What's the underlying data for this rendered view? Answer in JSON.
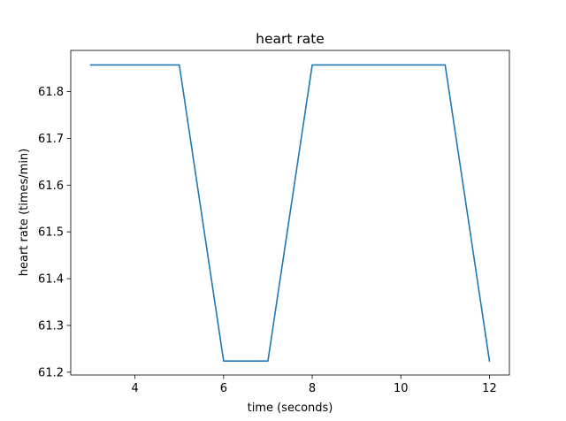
{
  "chart_data": {
    "type": "line",
    "title": "heart rate",
    "xlabel": "time (seconds)",
    "ylabel": "heart rate (times/min)",
    "xlim": [
      2.55,
      12.45
    ],
    "ylim": [
      61.194,
      61.888
    ],
    "xticks": [
      4,
      6,
      8,
      10,
      12
    ],
    "yticks": [
      61.2,
      61.3,
      61.4,
      61.5,
      61.6,
      61.7,
      61.8
    ],
    "xtick_labels": [
      "4",
      "6",
      "8",
      "10",
      "12"
    ],
    "ytick_labels": [
      "61.2",
      "61.3",
      "61.4",
      "61.5",
      "61.6",
      "61.7",
      "61.8"
    ],
    "grid": false,
    "legend": "none",
    "series": [
      {
        "color": "#1f77b4",
        "x": [
          3,
          4,
          5,
          6,
          7,
          8,
          9,
          10,
          11,
          12
        ],
        "y": [
          61.857,
          61.857,
          61.857,
          61.224,
          61.224,
          61.857,
          61.857,
          61.857,
          61.857,
          61.224
        ]
      }
    ]
  }
}
